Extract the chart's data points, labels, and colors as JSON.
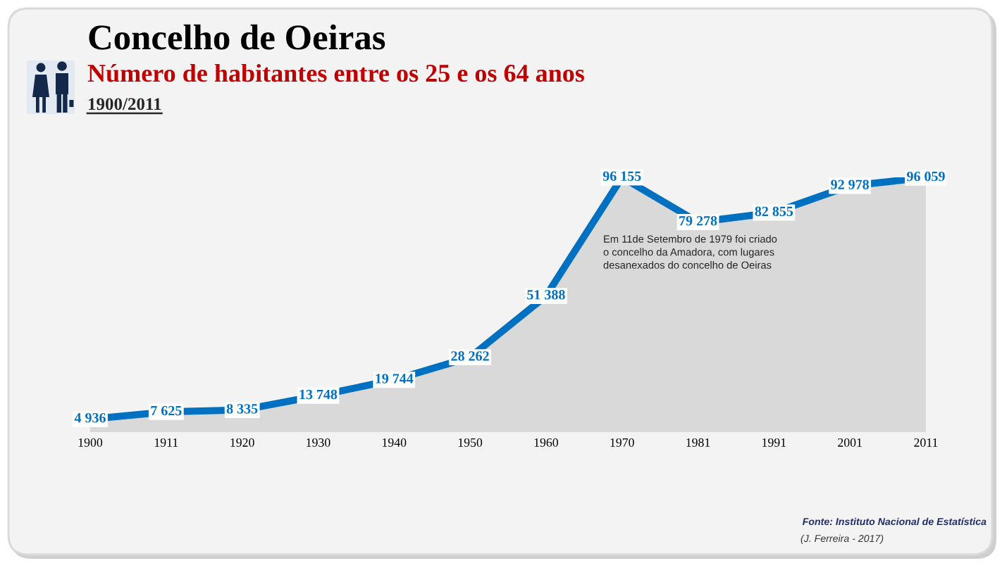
{
  "chart_data": {
    "type": "area",
    "title": "Concelho de Oeiras",
    "subtitle": "Número de habitantes entre os 25 e os 64 anos",
    "annotations": [
      "1900/2011",
      "Em 11de Setembro de 1979 foi criado\no concelho da Amadora, com lugares\ndesanexados do concelho de Oeiras",
      "Fonte: Instituto Nacional de Estatística",
      "(J. Ferreira - 2017)"
    ],
    "categories": [
      "1900",
      "1911",
      "1920",
      "1930",
      "1940",
      "1950",
      "1960",
      "1970",
      "1981",
      "1991",
      "2001",
      "2011"
    ],
    "series": [
      {
        "color": "#0070c0",
        "values": [
          4936,
          7625,
          8335,
          13748,
          19744,
          28262,
          51388,
          96155,
          79278,
          82855,
          92978,
          96059
        ],
        "value_labels": [
          "4 936",
          "7 625",
          "8 335",
          "13 748",
          "19 744",
          "28 262",
          "51 388",
          "96 155",
          "79 278",
          "82 855",
          "92 978",
          "96 059"
        ]
      }
    ],
    "tick_labels": "x"
  }
}
